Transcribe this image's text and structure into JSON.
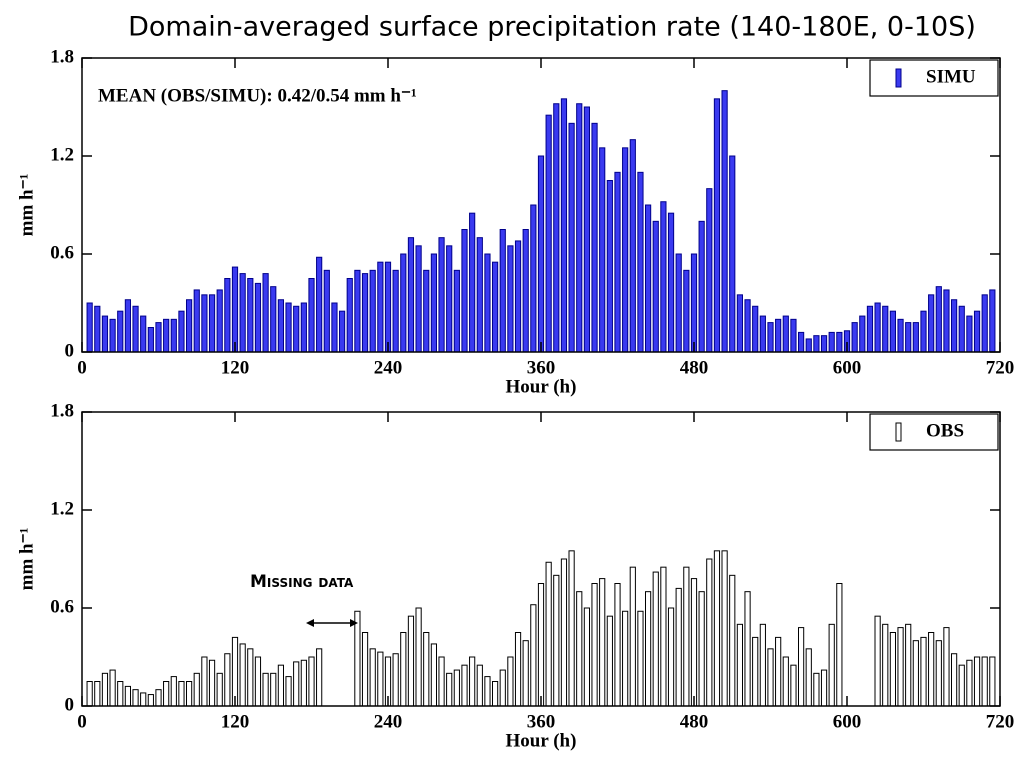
{
  "title": "Domain-averaged surface precipitation rate (140-180E, 0-10S)",
  "chart_data": [
    {
      "type": "bar",
      "annotation": "MEAN (OBS/SIMU): 0.42/0.54 mm h⁻¹",
      "xlabel": "Hour (h)",
      "ylabel": "mm h⁻¹",
      "legend": "upper right",
      "xlim": [
        0,
        720
      ],
      "xticks": [
        0,
        120,
        240,
        360,
        480,
        600,
        720
      ],
      "ylim": [
        0,
        1.8
      ],
      "yticks": [
        0,
        0.6,
        1.2,
        1.8
      ],
      "x": [
        6,
        12,
        18,
        24,
        30,
        36,
        42,
        48,
        54,
        60,
        66,
        72,
        78,
        84,
        90,
        96,
        102,
        108,
        114,
        120,
        126,
        132,
        138,
        144,
        150,
        156,
        162,
        168,
        174,
        180,
        186,
        192,
        198,
        204,
        210,
        216,
        222,
        228,
        234,
        240,
        246,
        252,
        258,
        264,
        270,
        276,
        282,
        288,
        294,
        300,
        306,
        312,
        318,
        324,
        330,
        336,
        342,
        348,
        354,
        360,
        366,
        372,
        378,
        384,
        390,
        396,
        402,
        408,
        414,
        420,
        426,
        432,
        438,
        444,
        450,
        456,
        462,
        468,
        474,
        480,
        486,
        492,
        498,
        504,
        510,
        516,
        522,
        528,
        534,
        540,
        546,
        552,
        558,
        564,
        570,
        576,
        582,
        588,
        594,
        600,
        606,
        612,
        618,
        624,
        630,
        636,
        642,
        648,
        654,
        660,
        666,
        672,
        678,
        684,
        690,
        696,
        702,
        708,
        714
      ],
      "series": [
        {
          "name": "SIMU",
          "color": "#3a3af0",
          "edge": "#00008b",
          "values": [
            0.3,
            0.28,
            0.22,
            0.2,
            0.25,
            0.32,
            0.28,
            0.22,
            0.15,
            0.18,
            0.2,
            0.2,
            0.25,
            0.32,
            0.38,
            0.35,
            0.35,
            0.38,
            0.45,
            0.52,
            0.48,
            0.45,
            0.42,
            0.48,
            0.4,
            0.32,
            0.3,
            0.28,
            0.3,
            0.45,
            0.58,
            0.5,
            0.3,
            0.25,
            0.45,
            0.5,
            0.48,
            0.5,
            0.55,
            0.55,
            0.5,
            0.6,
            0.7,
            0.65,
            0.5,
            0.6,
            0.7,
            0.65,
            0.5,
            0.75,
            0.85,
            0.7,
            0.6,
            0.55,
            0.75,
            0.65,
            0.68,
            0.75,
            0.9,
            1.2,
            1.45,
            1.52,
            1.55,
            1.4,
            1.52,
            1.5,
            1.4,
            1.25,
            1.05,
            1.1,
            1.25,
            1.3,
            1.1,
            0.9,
            0.8,
            0.92,
            0.85,
            0.6,
            0.5,
            0.6,
            0.8,
            1.0,
            1.55,
            1.6,
            1.2,
            0.35,
            0.32,
            0.28,
            0.22,
            0.18,
            0.2,
            0.22,
            0.2,
            0.12,
            0.08,
            0.1,
            0.1,
            0.12,
            0.12,
            0.13,
            0.18,
            0.22,
            0.28,
            0.3,
            0.28,
            0.25,
            0.2,
            0.18,
            0.18,
            0.25,
            0.35,
            0.4,
            0.38,
            0.32,
            0.28,
            0.22,
            0.25,
            0.35,
            0.38
          ]
        }
      ]
    },
    {
      "type": "bar",
      "annotation": "Missing data",
      "xlabel": "Hour (h)",
      "ylabel": "mm h⁻¹",
      "legend": "upper right",
      "xlim": [
        0,
        720
      ],
      "xticks": [
        0,
        120,
        240,
        360,
        480,
        600,
        720
      ],
      "ylim": [
        0,
        1.8
      ],
      "yticks": [
        0,
        0.6,
        1.2,
        1.8
      ],
      "x": [
        6,
        12,
        18,
        24,
        30,
        36,
        42,
        48,
        54,
        60,
        66,
        72,
        78,
        84,
        90,
        96,
        102,
        108,
        114,
        120,
        126,
        132,
        138,
        144,
        150,
        156,
        162,
        168,
        174,
        180,
        186,
        192,
        198,
        204,
        210,
        216,
        222,
        228,
        234,
        240,
        246,
        252,
        258,
        264,
        270,
        276,
        282,
        288,
        294,
        300,
        306,
        312,
        318,
        324,
        330,
        336,
        342,
        348,
        354,
        360,
        366,
        372,
        378,
        384,
        390,
        396,
        402,
        408,
        414,
        420,
        426,
        432,
        438,
        444,
        450,
        456,
        462,
        468,
        474,
        480,
        486,
        492,
        498,
        504,
        510,
        516,
        522,
        528,
        534,
        540,
        546,
        552,
        558,
        564,
        570,
        576,
        582,
        588,
        594,
        600,
        606,
        612,
        618,
        624,
        630,
        636,
        642,
        648,
        654,
        660,
        666,
        672,
        678,
        684,
        690,
        696,
        702,
        708,
        714
      ],
      "series": [
        {
          "name": "OBS",
          "color": "#ffffff",
          "edge": "#000000",
          "values": [
            0.15,
            0.15,
            0.2,
            0.22,
            0.15,
            0.12,
            0.1,
            0.08,
            0.07,
            0.1,
            0.15,
            0.18,
            0.15,
            0.15,
            0.2,
            0.3,
            0.28,
            0.2,
            0.32,
            0.42,
            0.38,
            0.35,
            0.3,
            0.2,
            0.2,
            0.25,
            0.18,
            0.27,
            0.28,
            0.3,
            0.35,
            null,
            null,
            null,
            null,
            0.58,
            0.45,
            0.35,
            0.33,
            0.3,
            0.32,
            0.45,
            0.55,
            0.6,
            0.45,
            0.38,
            0.3,
            0.2,
            0.22,
            0.25,
            0.3,
            0.25,
            0.18,
            0.15,
            0.22,
            0.3,
            0.45,
            0.4,
            0.62,
            0.75,
            0.88,
            0.8,
            0.9,
            0.95,
            0.7,
            0.6,
            0.75,
            0.78,
            0.55,
            0.75,
            0.58,
            0.85,
            0.58,
            0.7,
            0.82,
            0.85,
            0.6,
            0.72,
            0.85,
            0.78,
            0.7,
            0.9,
            0.95,
            0.95,
            0.8,
            0.5,
            0.7,
            0.42,
            0.5,
            0.35,
            0.42,
            0.3,
            0.25,
            0.48,
            0.35,
            0.2,
            0.22,
            0.5,
            0.75,
            null,
            null,
            null,
            null,
            0.55,
            0.5,
            0.45,
            0.48,
            0.5,
            0.4,
            0.42,
            0.45,
            0.4,
            0.48,
            0.32,
            0.25,
            0.28,
            0.3,
            0.3,
            0.3
          ]
        }
      ]
    }
  ]
}
